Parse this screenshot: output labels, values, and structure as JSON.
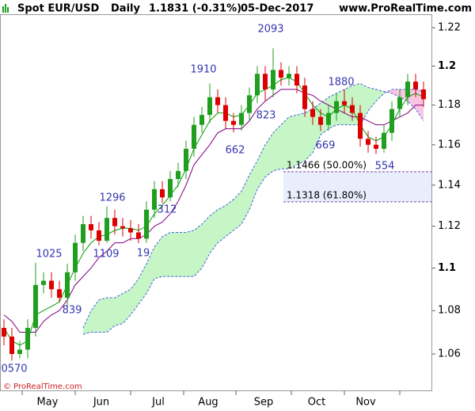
{
  "chart_data": {
    "type": "candlestick",
    "title": "Spot EUR/USD",
    "period": "Daily",
    "last": "1.1831 (-0.31%)",
    "date": "05-Dec-2017",
    "source": "www.ProRealTime.com",
    "copyright": "© ProRealTime.com",
    "log_scale": true,
    "ylim": [
      1.0435,
      1.2271
    ],
    "yticks": [
      1.06,
      1.08,
      1.1,
      1.12,
      1.14,
      1.16,
      1.18,
      1.2,
      1.22
    ],
    "x_labels": [
      "May",
      "Jun",
      "Jul",
      "Aug",
      "Sep",
      "Oct",
      "Nov"
    ],
    "up_color": "#1f9e1f",
    "down_color": "#dd0000",
    "open": [
      1.072,
      1.068,
      1.06,
      1.062,
      1.072,
      1.092,
      1.094,
      1.09,
      1.086,
      1.098,
      1.112,
      1.121,
      1.118,
      1.113,
      1.124,
      1.12,
      1.119,
      1.117,
      1.114,
      1.128,
      1.138,
      1.134,
      1.143,
      1.147,
      1.158,
      1.17,
      1.175,
      1.184,
      1.18,
      1.172,
      1.17,
      1.176,
      1.185,
      1.196,
      1.188,
      1.198,
      1.194,
      1.196,
      1.19,
      1.178,
      1.174,
      1.17,
      1.176,
      1.182,
      1.18,
      1.176,
      1.163,
      1.16,
      1.158,
      1.166,
      1.178,
      1.184,
      1.192,
      1.188
    ],
    "high": [
      1.076,
      1.072,
      1.066,
      1.076,
      1.1025,
      1.098,
      1.098,
      1.094,
      1.102,
      1.116,
      1.125,
      1.125,
      1.122,
      1.1296,
      1.128,
      1.124,
      1.123,
      1.121,
      1.132,
      1.142,
      1.142,
      1.147,
      1.151,
      1.162,
      1.174,
      1.179,
      1.191,
      1.188,
      1.184,
      1.176,
      1.18,
      1.189,
      1.2,
      1.2,
      1.2093,
      1.202,
      1.2,
      1.2,
      1.194,
      1.182,
      1.178,
      1.18,
      1.186,
      1.188,
      1.184,
      1.18,
      1.167,
      1.164,
      1.17,
      1.182,
      1.188,
      1.196,
      1.196,
      1.192
    ],
    "low": [
      1.064,
      1.057,
      1.058,
      1.058,
      1.068,
      1.088,
      1.086,
      1.0839,
      1.082,
      1.094,
      1.108,
      1.114,
      1.1109,
      1.112,
      1.116,
      1.115,
      1.113,
      1.1119,
      1.112,
      1.124,
      1.1312,
      1.132,
      1.139,
      1.143,
      1.154,
      1.166,
      1.171,
      1.176,
      1.168,
      1.1662,
      1.167,
      1.172,
      1.181,
      1.1823,
      1.184,
      1.19,
      1.19,
      1.186,
      1.174,
      1.17,
      1.1669,
      1.167,
      1.172,
      1.176,
      1.172,
      1.159,
      1.156,
      1.1554,
      1.156,
      1.162,
      1.174,
      1.18,
      1.184,
      1.179
    ],
    "close": [
      1.068,
      1.06,
      1.062,
      1.072,
      1.092,
      1.094,
      1.09,
      1.086,
      1.098,
      1.112,
      1.121,
      1.118,
      1.113,
      1.124,
      1.12,
      1.119,
      1.117,
      1.114,
      1.128,
      1.138,
      1.134,
      1.143,
      1.147,
      1.158,
      1.17,
      1.175,
      1.184,
      1.18,
      1.172,
      1.17,
      1.176,
      1.185,
      1.196,
      1.188,
      1.198,
      1.194,
      1.196,
      1.19,
      1.178,
      1.174,
      1.17,
      1.176,
      1.182,
      1.18,
      1.176,
      1.163,
      1.16,
      1.158,
      1.166,
      1.178,
      1.184,
      1.192,
      1.188,
      1.183
    ],
    "tenkan": {
      "color": "#00a000",
      "values": [
        1.072,
        1.066,
        1.064,
        1.066,
        1.078,
        1.08,
        1.082,
        1.084,
        1.092,
        1.1,
        1.107,
        1.112,
        1.115,
        1.116,
        1.118,
        1.119,
        1.119,
        1.118,
        1.12,
        1.126,
        1.13,
        1.135,
        1.14,
        1.148,
        1.158,
        1.165,
        1.172,
        1.176,
        1.176,
        1.174,
        1.175,
        1.18,
        1.186,
        1.188,
        1.19,
        1.193,
        1.194,
        1.192,
        1.186,
        1.18,
        1.176,
        1.174,
        1.178,
        1.18,
        1.178,
        1.17,
        1.164,
        1.162,
        1.164,
        1.17,
        1.178,
        1.184,
        1.186,
        1.184
      ]
    },
    "kijun": {
      "color": "#800080",
      "values": [
        1.078,
        1.075,
        1.07,
        1.07,
        1.07,
        1.075,
        1.078,
        1.08,
        1.085,
        1.092,
        1.096,
        1.1,
        1.105,
        1.108,
        1.112,
        1.112,
        1.114,
        1.114,
        1.116,
        1.12,
        1.122,
        1.126,
        1.132,
        1.14,
        1.15,
        1.155,
        1.16,
        1.166,
        1.168,
        1.168,
        1.168,
        1.172,
        1.178,
        1.182,
        1.185,
        1.188,
        1.188,
        1.188,
        1.186,
        1.185,
        1.182,
        1.18,
        1.178,
        1.176,
        1.174,
        1.174,
        1.172,
        1.17,
        1.17,
        1.172,
        1.174,
        1.176,
        1.18,
        1.18
      ]
    },
    "cloud": {
      "edge_color": "#4466dd",
      "bull_color": "#c6f5c6",
      "bear_color": "#f8c6e2",
      "span_a": [
        null,
        null,
        null,
        null,
        null,
        null,
        null,
        null,
        null,
        null,
        1.072,
        1.08,
        1.085,
        1.086,
        1.086,
        1.088,
        1.09,
        1.095,
        1.102,
        1.11,
        1.115,
        1.117,
        1.117,
        1.117,
        1.118,
        1.121,
        1.125,
        1.128,
        1.13,
        1.133,
        1.137,
        1.145,
        1.152,
        1.16,
        1.166,
        1.17,
        1.174,
        1.175,
        1.176,
        1.178,
        1.181,
        1.184,
        1.186,
        1.188,
        1.19,
        1.191,
        1.189,
        1.188,
        1.187,
        1.186,
        1.184,
        1.182,
        1.178,
        1.172
      ],
      "span_b": [
        null,
        null,
        null,
        null,
        null,
        null,
        null,
        null,
        null,
        null,
        1.069,
        1.07,
        1.07,
        1.07,
        1.073,
        1.074,
        1.078,
        1.083,
        1.088,
        1.095,
        1.096,
        1.096,
        1.096,
        1.096,
        1.096,
        1.1,
        1.107,
        1.112,
        1.115,
        1.118,
        1.121,
        1.128,
        1.138,
        1.144,
        1.147,
        1.148,
        1.148,
        1.15,
        1.152,
        1.156,
        1.165,
        1.168,
        1.17,
        1.17,
        1.17,
        1.17,
        1.177,
        1.182,
        1.186,
        1.188,
        1.188,
        1.188,
        1.188,
        1.187
      ]
    },
    "fib_levels": [
      {
        "value": 1.1466,
        "label": "1.1466 (50.00%)"
      },
      {
        "value": 1.1318,
        "label": "1.1318 (61.80%)"
      }
    ],
    "fib_color": "#e02020",
    "annotations": [
      "2093",
      "1910",
      "1880",
      "823",
      "1296",
      "662",
      "669",
      "554",
      "1025",
      "1109",
      "19",
      "312",
      "839",
      "0570"
    ]
  }
}
